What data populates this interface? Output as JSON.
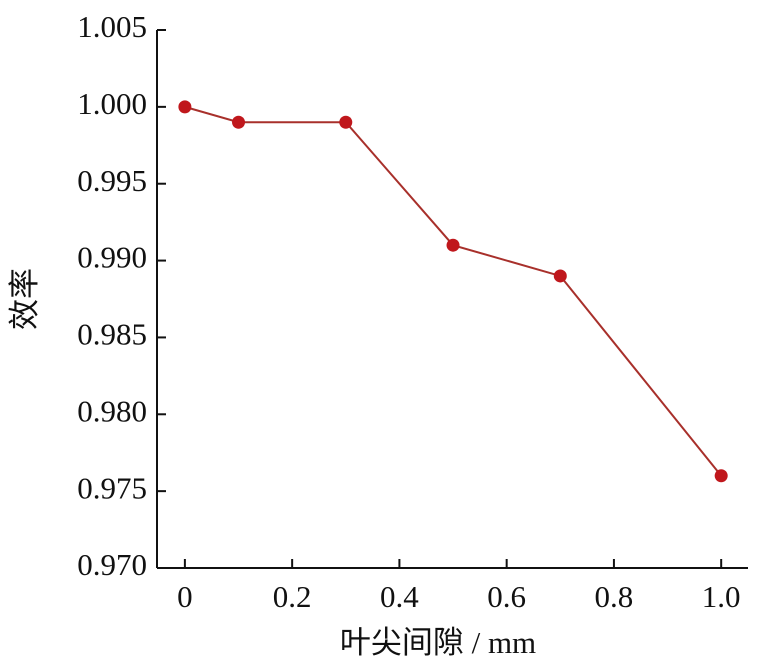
{
  "chart_data": {
    "type": "line",
    "x_label": "叶尖间隙 / mm",
    "y_label": "效率",
    "x": [
      0,
      0.1,
      0.3,
      0.5,
      0.7,
      1.0
    ],
    "series": [
      {
        "color": "#c0171c",
        "values": [
          1.0,
          0.999,
          0.999,
          0.991,
          0.989,
          0.976
        ]
      }
    ],
    "line_color": "#a8302b",
    "xlim": [
      -0.052,
      1.05
    ],
    "xticks": [
      0,
      0.2,
      0.4,
      0.6,
      0.8,
      {
        "value": 1.0,
        "label": "1.0"
      }
    ],
    "ylim": [
      0.97,
      1.005
    ],
    "yticks": [
      {
        "value": 0.97,
        "label": "0.970"
      },
      0.975,
      {
        "value": 0.98,
        "label": "0.980"
      },
      0.985,
      {
        "value": 0.99,
        "label": "0.990"
      },
      0.995,
      {
        "value": 1.0,
        "label": "1.000"
      },
      1.005
    ],
    "grid": false
  }
}
